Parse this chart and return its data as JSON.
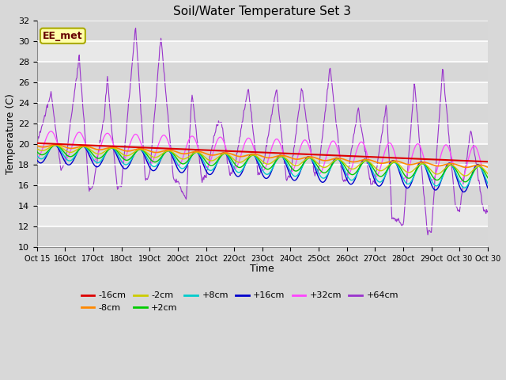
{
  "title": "Soil/Water Temperature Set 3",
  "xlabel": "Time",
  "ylabel": "Temperature (C)",
  "ylim": [
    10,
    32
  ],
  "yticks": [
    10,
    12,
    14,
    16,
    18,
    20,
    22,
    24,
    26,
    28,
    30,
    32
  ],
  "bg_color": "#d8d8d8",
  "plot_bg_light": "#e8e8e8",
  "plot_bg_dark": "#d8d8d8",
  "series_colors": {
    "-16cm": "#dd0000",
    "-8cm": "#ff8800",
    "-2cm": "#cccc00",
    "+2cm": "#00cc00",
    "+8cm": "#00cccc",
    "+16cm": "#0000cc",
    "+32cm": "#ff44ff",
    "+64cm": "#9933cc"
  },
  "annotation_text": "EE_met",
  "annotation_bg": "#ffffaa",
  "annotation_border": "#aaaa00",
  "n_days": 16,
  "ppd": 48,
  "x_tick_labels": [
    "Oct 15",
    "16Oct",
    "17Oct",
    "18Oct",
    "19Oct",
    "20Oct",
    "21Oct",
    "22Oct",
    "23Oct",
    "24Oct",
    "25Oct",
    "26Oct",
    "27Oct",
    "28Oct",
    "29Oct",
    "Oct 30"
  ],
  "legend_order": [
    "-16cm",
    "-8cm",
    "-2cm",
    "+2cm",
    "+8cm",
    "+16cm",
    "+32cm",
    "+64cm"
  ]
}
